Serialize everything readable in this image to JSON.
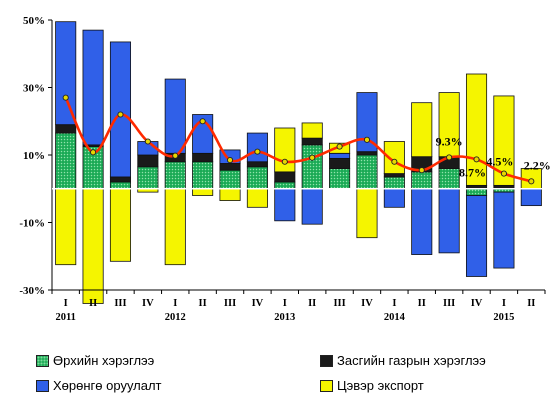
{
  "chart_data": {
    "type": "bar",
    "stacked": true,
    "ylim": [
      -30,
      50
    ],
    "yticks": [
      -30,
      -10,
      10,
      30,
      50
    ],
    "ytick_labels": [
      "-30%",
      "-10%",
      "10%",
      "30%",
      "50%"
    ],
    "quarters": [
      "I",
      "II",
      "III",
      "IV",
      "I",
      "II",
      "III",
      "IV",
      "I",
      "II",
      "III",
      "IV",
      "I",
      "II",
      "III",
      "IV",
      "I",
      "II"
    ],
    "years": [
      {
        "label": "2011",
        "start": 0
      },
      {
        "label": "2012",
        "start": 4
      },
      {
        "label": "2013",
        "start": 8
      },
      {
        "label": "2014",
        "start": 12
      },
      {
        "label": "2015",
        "start": 16
      }
    ],
    "series": [
      {
        "name": "Өрхийн хэрэглээ",
        "color": "#1aaa55",
        "pattern": "dots",
        "values": [
          16.5,
          12.5,
          2.0,
          6.5,
          8.0,
          8.0,
          5.5,
          6.5,
          2.0,
          13.0,
          6.0,
          10.0,
          3.5,
          5.0,
          6.0,
          -2.0,
          -1.0,
          0.0
        ]
      },
      {
        "name": "Засгийн газрын хэрэглээ",
        "color": "#1a1a1a",
        "values": [
          2.5,
          0.5,
          1.5,
          3.5,
          2.5,
          2.5,
          2.0,
          1.5,
          3.0,
          2.0,
          3.0,
          1.0,
          1.0,
          4.5,
          3.5,
          1.0,
          1.0,
          0.0
        ]
      },
      {
        "name": "Хөрөнгө оруулалт",
        "color": "#3060e8",
        "values": [
          30.5,
          34.0,
          40.0,
          4.0,
          22.0,
          11.5,
          4.0,
          8.5,
          -9.5,
          -10.5,
          1.5,
          17.5,
          -5.5,
          -19.5,
          -19.0,
          -24.0,
          -22.5,
          -5.0
        ]
      },
      {
        "name": "Цэвэр экспорт",
        "color": "#f5f500",
        "values": [
          -22.5,
          -34.0,
          -21.5,
          -1.0,
          -22.5,
          -2.0,
          -3.5,
          -5.5,
          13.0,
          4.5,
          3.0,
          -14.5,
          9.5,
          16.0,
          19.0,
          33.0,
          26.5,
          6.0
        ]
      }
    ],
    "line": {
      "name": "",
      "color": "#ff2a00",
      "values": [
        27.0,
        10.8,
        22.0,
        14.0,
        9.8,
        20.0,
        8.5,
        11.0,
        8.0,
        9.2,
        12.5,
        14.5,
        8.0,
        5.5,
        9.3,
        8.7,
        4.5,
        2.2
      ]
    },
    "data_labels": [
      {
        "index": 14,
        "text": "9.3%"
      },
      {
        "index": 15,
        "text": "8.7%"
      },
      {
        "index": 16,
        "text": "4.5%"
      },
      {
        "index": 17,
        "text": "2.2%"
      }
    ],
    "legend_position": "bottom"
  }
}
